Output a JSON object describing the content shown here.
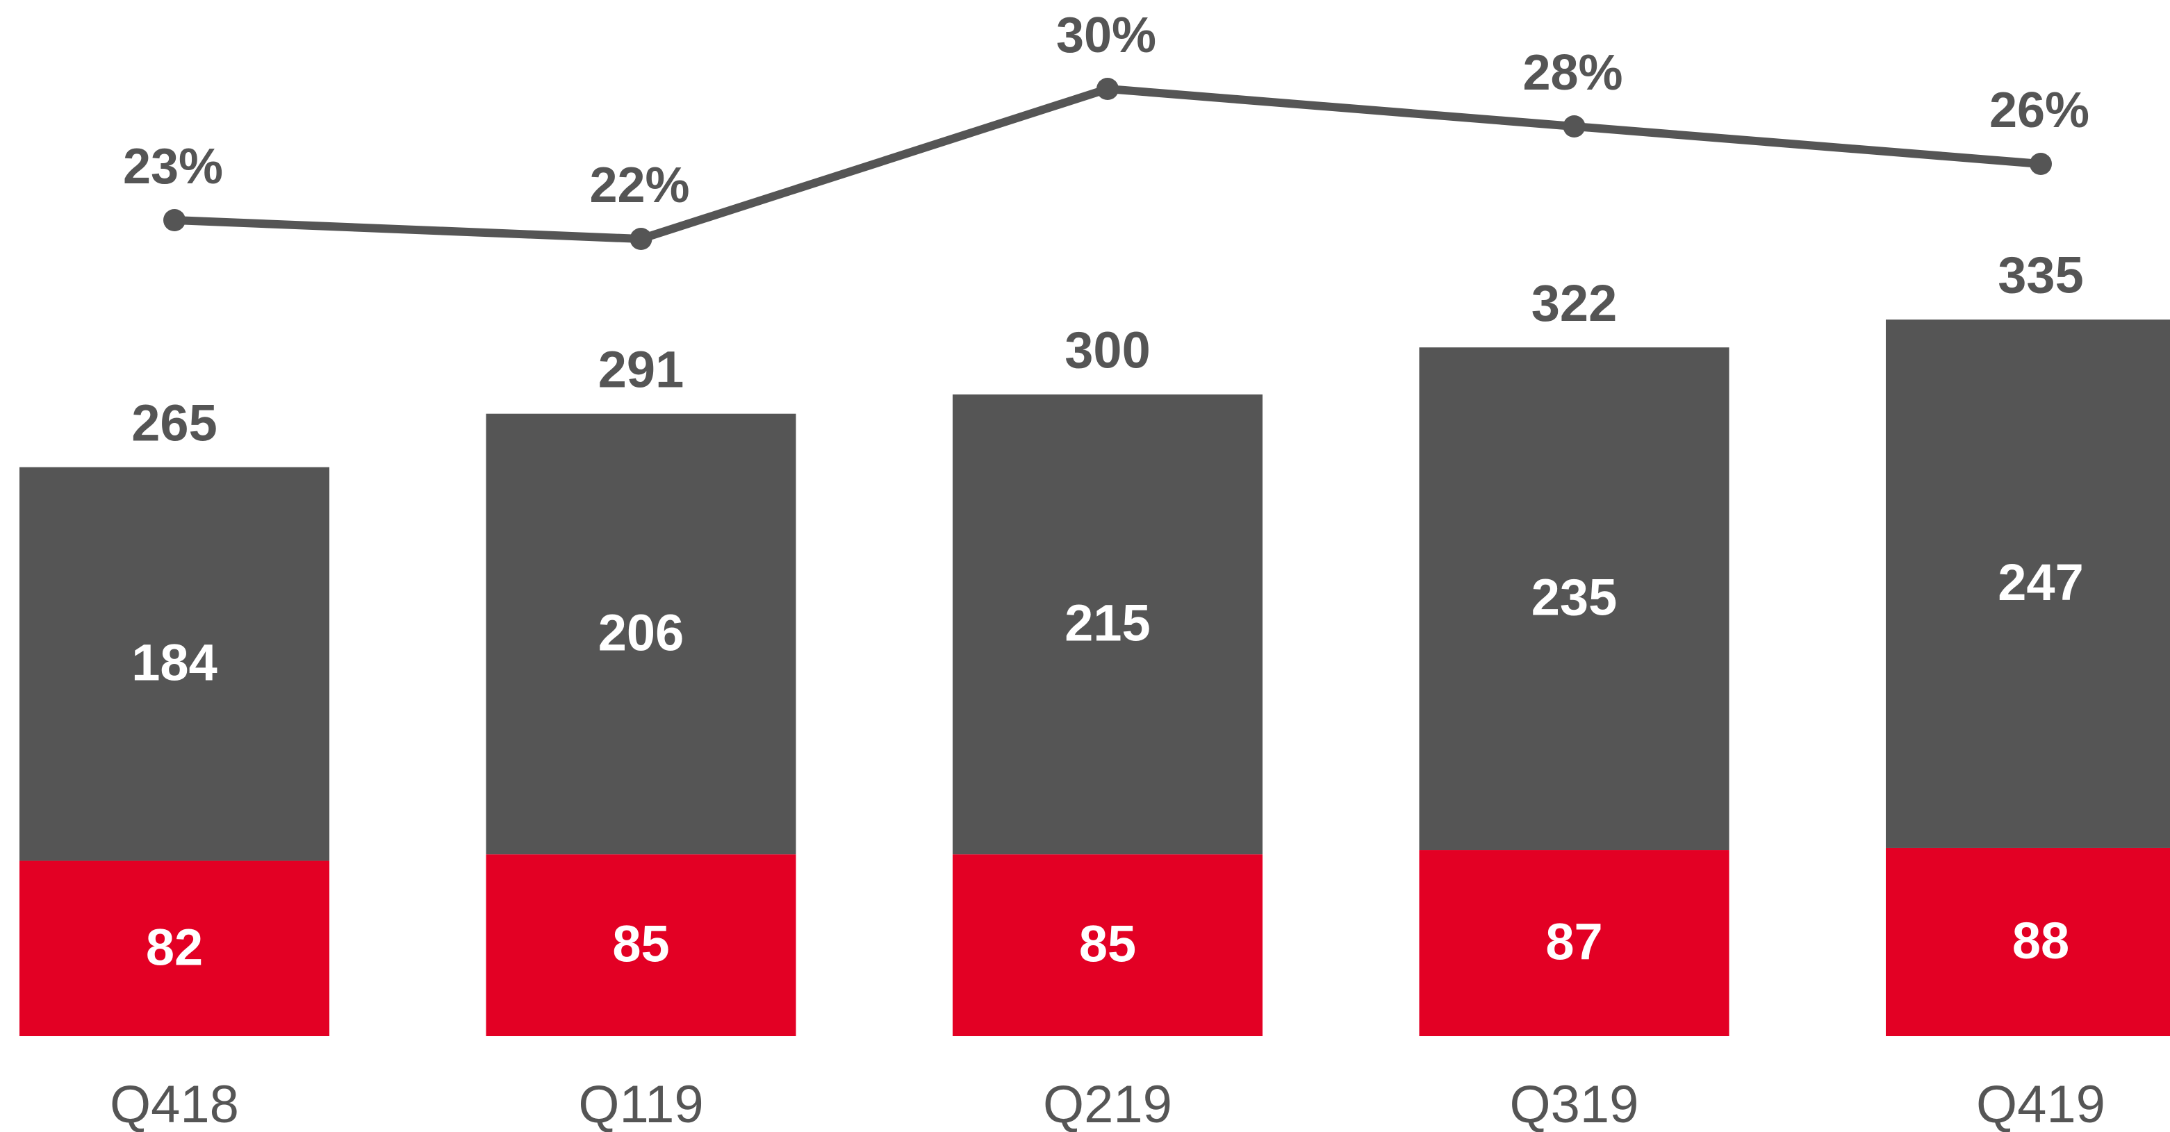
{
  "chart_data": {
    "type": "bar",
    "stacked": true,
    "categories": [
      "Q418",
      "Q119",
      "Q219",
      "Q319",
      "Q419"
    ],
    "series": [
      {
        "color": "#e30024",
        "values": [
          82,
          85,
          85,
          87,
          88
        ]
      },
      {
        "color": "#555555",
        "values": [
          184,
          206,
          215,
          235,
          247
        ]
      },
      {
        "type": "line",
        "axis": "y2",
        "color": "#555555",
        "values": [
          23,
          22,
          30,
          28,
          26
        ],
        "value_labels": [
          "23%",
          "22%",
          "30%",
          "28%",
          "26%"
        ]
      }
    ],
    "totals": [
      265,
      291,
      300,
      322,
      335
    ]
  }
}
